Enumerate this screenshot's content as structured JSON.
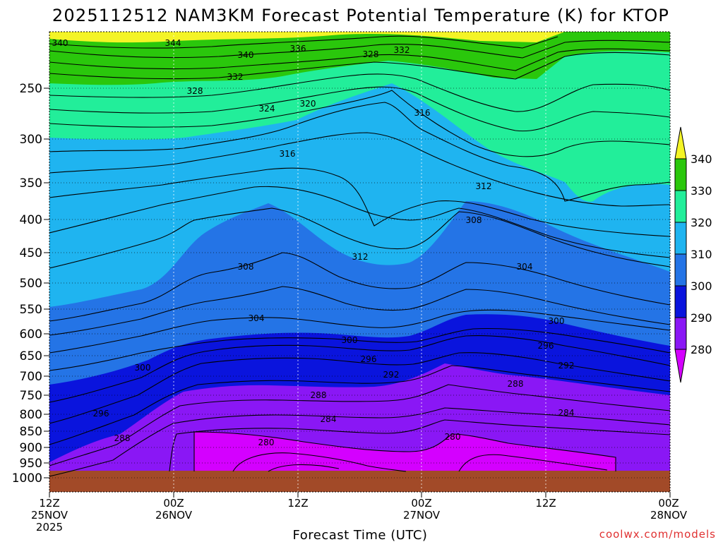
{
  "chart_data": {
    "type": "heatmap",
    "title": "2025112512 NAM3KM Forecast Potential Temperature (K) for KTOP",
    "xlabel": "Forecast Time (UTC)",
    "ylabel": "",
    "credit": "coolwx.com/models",
    "y_ticks": [
      "250",
      "300",
      "350",
      "400",
      "450",
      "500",
      "550",
      "600",
      "650",
      "700",
      "750",
      "800",
      "850",
      "900",
      "950",
      "1000"
    ],
    "x_ticks": [
      {
        "line1": "12Z",
        "line2": "25NOV",
        "line3": "2025"
      },
      {
        "line1": "00Z",
        "line2": "26NOV",
        "line3": ""
      },
      {
        "line1": "12Z",
        "line2": "",
        "line3": ""
      },
      {
        "line1": "00Z",
        "line2": "27NOV",
        "line3": ""
      },
      {
        "line1": "12Z",
        "line2": "",
        "line3": ""
      },
      {
        "line1": "00Z",
        "line2": "28NOV",
        "line3": ""
      }
    ],
    "colorbar": {
      "levels": [
        "280",
        "290",
        "300",
        "310",
        "320",
        "330",
        "340"
      ],
      "colors": [
        "#d400ff",
        "#8a17f5",
        "#0a14dd",
        "#2474e6",
        "#1fb4f0",
        "#22ee9a",
        "#2ac70c",
        "#f4f426"
      ]
    },
    "colors": {
      "band_280": "#d400ff",
      "band_290": "#8a17f5",
      "band_300": "#0a14dd",
      "band_310": "#2474e6",
      "band_320": "#1fb4f0",
      "band_330": "#22ee9a",
      "band_340": "#2ac70c",
      "band_above": "#f4f426",
      "ground": "#a24a28"
    },
    "contour_labels": [
      {
        "text": "340"
      },
      {
        "text": "344"
      },
      {
        "text": "340"
      },
      {
        "text": "336"
      },
      {
        "text": "328"
      },
      {
        "text": "332"
      },
      {
        "text": "332"
      },
      {
        "text": "328"
      },
      {
        "text": "324"
      },
      {
        "text": "320"
      },
      {
        "text": "316"
      },
      {
        "text": "316"
      },
      {
        "text": "312"
      },
      {
        "text": "308"
      },
      {
        "text": "312"
      },
      {
        "text": "308"
      },
      {
        "text": "304"
      },
      {
        "text": "304"
      },
      {
        "text": "300"
      },
      {
        "text": "300"
      },
      {
        "text": "296"
      },
      {
        "text": "300"
      },
      {
        "text": "296"
      },
      {
        "text": "292"
      },
      {
        "text": "292"
      },
      {
        "text": "288"
      },
      {
        "text": "288"
      },
      {
        "text": "284"
      },
      {
        "text": "284"
      },
      {
        "text": "296"
      },
      {
        "text": "288"
      },
      {
        "text": "280"
      },
      {
        "text": "280"
      }
    ]
  }
}
